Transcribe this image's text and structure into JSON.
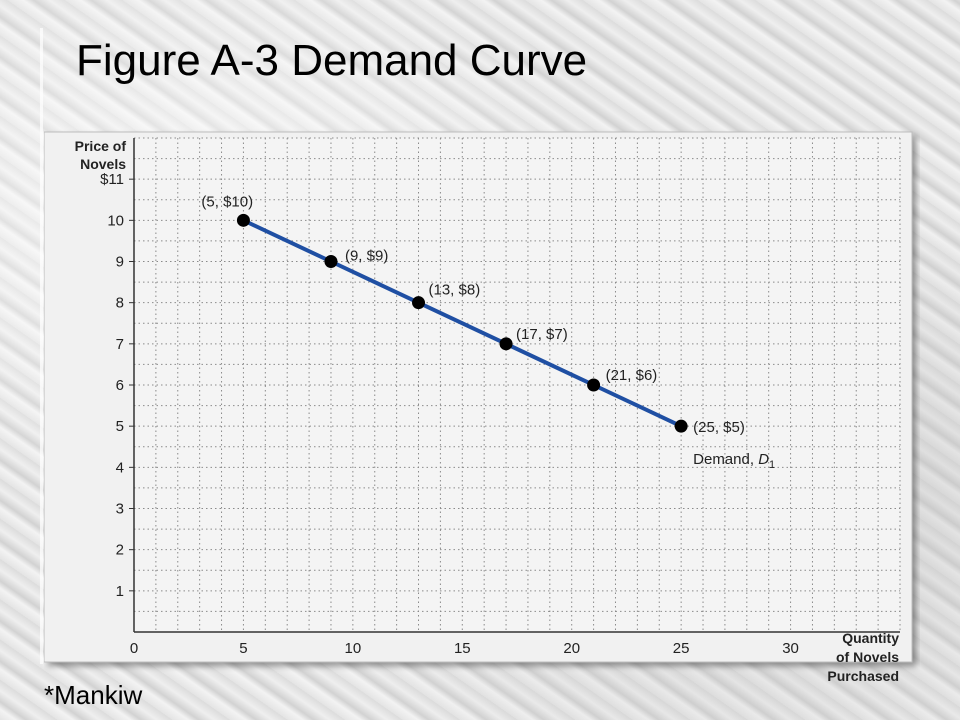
{
  "slide": {
    "title": "Figure A-3 Demand Curve",
    "footnote": "*Mankiw"
  },
  "colors": {
    "line": "#1f4fa3",
    "point": "#000000",
    "grid": "#8a8a8a",
    "plot_bg": "#f4f4f4"
  },
  "chart_data": {
    "type": "line",
    "title": "",
    "ylabel_lines": [
      "Price of",
      "Novels"
    ],
    "xlabel_lines": [
      "Quantity",
      "of Novels",
      "Purchased"
    ],
    "xlim": [
      0,
      35
    ],
    "ylim": [
      0,
      12
    ],
    "x_ticks": [
      {
        "value": 0,
        "label": "0"
      },
      {
        "value": 5,
        "label": "5"
      },
      {
        "value": 10,
        "label": "10"
      },
      {
        "value": 15,
        "label": "15"
      },
      {
        "value": 20,
        "label": "20"
      },
      {
        "value": 25,
        "label": "25"
      },
      {
        "value": 30,
        "label": "30"
      }
    ],
    "y_ticks": [
      {
        "value": 1,
        "label": "1"
      },
      {
        "value": 2,
        "label": "2"
      },
      {
        "value": 3,
        "label": "3"
      },
      {
        "value": 4,
        "label": "4"
      },
      {
        "value": 5,
        "label": "5"
      },
      {
        "value": 6,
        "label": "6"
      },
      {
        "value": 7,
        "label": "7"
      },
      {
        "value": 8,
        "label": "8"
      },
      {
        "value": 9,
        "label": "9"
      },
      {
        "value": 10,
        "label": "10"
      },
      {
        "value": 11,
        "label": "$11"
      }
    ],
    "grid": true,
    "series": [
      {
        "name": "Demand, D1",
        "name_main": "Demand, ",
        "name_italic": "D",
        "name_sub": "1",
        "points": [
          {
            "x": 5,
            "y": 10,
            "label": "(5, $10)"
          },
          {
            "x": 9,
            "y": 9,
            "label": "(9, $9)"
          },
          {
            "x": 13,
            "y": 8,
            "label": "(13, $8)"
          },
          {
            "x": 17,
            "y": 7,
            "label": "(17, $7)"
          },
          {
            "x": 21,
            "y": 6,
            "label": "(21, $6)"
          },
          {
            "x": 25,
            "y": 5,
            "label": "(25, $5)"
          }
        ]
      }
    ]
  }
}
